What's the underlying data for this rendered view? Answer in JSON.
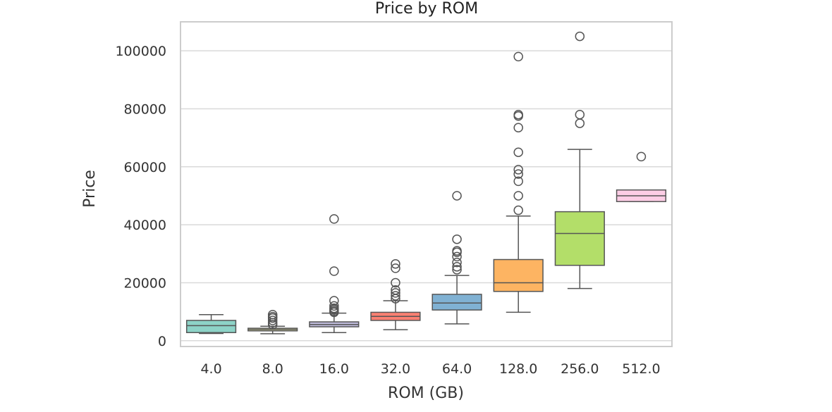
{
  "chart_data": {
    "type": "box",
    "title": "Price by ROM",
    "xlabel": "ROM (GB)",
    "ylabel": "Price",
    "ylim": [
      -2000,
      110000
    ],
    "yticks": [
      0,
      20000,
      40000,
      60000,
      80000,
      100000
    ],
    "ytick_labels": [
      "0",
      "20000",
      "40000",
      "60000",
      "80000",
      "100000"
    ],
    "grid": "horizontal",
    "categories": [
      "4.0",
      "8.0",
      "16.0",
      "32.0",
      "64.0",
      "128.0",
      "256.0",
      "512.0"
    ],
    "boxes": [
      {
        "category": "4.0",
        "color": "#8dd3c7",
        "whisker_low": 2500,
        "q1": 2800,
        "median": 5200,
        "q3": 7000,
        "whisker_high": 9000,
        "outliers": []
      },
      {
        "category": "8.0",
        "color": "#ffffb3",
        "whisker_low": 2400,
        "q1": 3400,
        "median": 3900,
        "q3": 4300,
        "whisker_high": 5000,
        "outliers": [
          5500,
          6200,
          7000,
          7800,
          8300,
          9000
        ]
      },
      {
        "category": "16.0",
        "color": "#bebada",
        "whisker_low": 2800,
        "q1": 4800,
        "median": 5600,
        "q3": 6500,
        "whisker_high": 9500,
        "outliers": [
          9800,
          10200,
          10700,
          11200,
          12000,
          13800,
          24000,
          42000
        ]
      },
      {
        "category": "32.0",
        "color": "#fb8072",
        "whisker_low": 3800,
        "q1": 7000,
        "median": 8400,
        "q3": 9800,
        "whisker_high": 13800,
        "outliers": [
          14500,
          15500,
          16500,
          17500,
          20000,
          25000,
          26500
        ]
      },
      {
        "category": "64.0",
        "color": "#80b1d3",
        "whisker_low": 5800,
        "q1": 10600,
        "median": 13000,
        "q3": 16000,
        "whisker_high": 22500,
        "outliers": [
          24500,
          25500,
          27000,
          29000,
          30500,
          31000,
          35000,
          50000
        ]
      },
      {
        "category": "128.0",
        "color": "#fdb462",
        "whisker_low": 9800,
        "q1": 17000,
        "median": 20000,
        "q3": 28000,
        "whisker_high": 43000,
        "outliers": [
          45000,
          50000,
          55000,
          57500,
          59000,
          65000,
          73500,
          77500,
          78000,
          98000
        ]
      },
      {
        "category": "256.0",
        "color": "#b3de69",
        "whisker_low": 18000,
        "q1": 26000,
        "median": 37000,
        "q3": 44500,
        "whisker_high": 66000,
        "outliers": [
          75000,
          78000,
          105000
        ]
      },
      {
        "category": "512.0",
        "color": "#fccde5",
        "whisker_low": 48000,
        "q1": 48000,
        "median": 50000,
        "q3": 52000,
        "whisker_high": 52000,
        "outliers": [
          63500
        ]
      }
    ]
  }
}
